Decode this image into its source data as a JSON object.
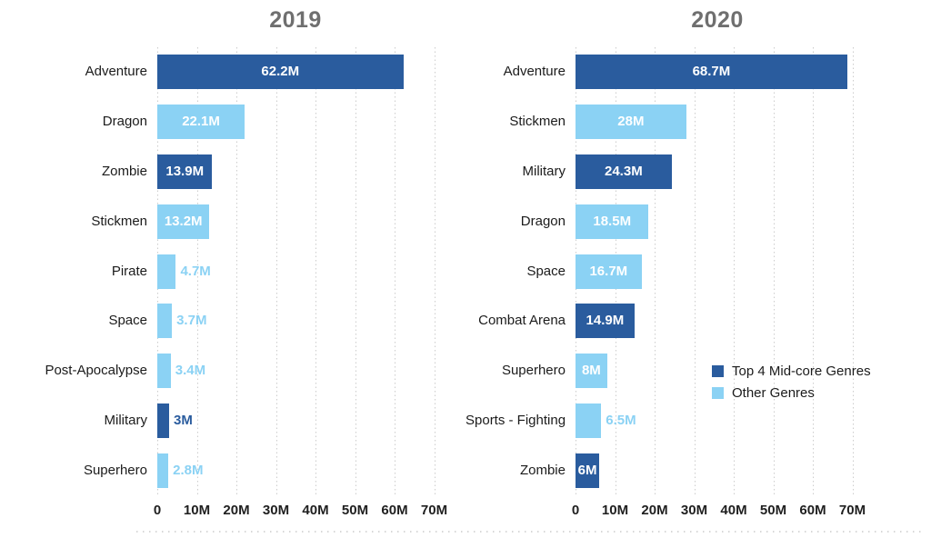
{
  "colors": {
    "top4": "#2a5c9e",
    "other": "#8bd2f4",
    "title": "#6f6f6f",
    "category_text": "#1b1b1b",
    "tick_text": "#1f1f1f",
    "grid": "#cccccc",
    "value_text_inside": "#ffffff"
  },
  "legend": {
    "items": [
      {
        "label": "Top 4 Mid-core Genres",
        "group": "top4"
      },
      {
        "label": "Other Genres",
        "group": "other"
      }
    ]
  },
  "chart_data": [
    {
      "type": "bar",
      "orientation": "horizontal",
      "title": "2019",
      "unit": "M",
      "xlim": [
        0,
        70
      ],
      "x_ticks": [
        "0",
        "10M",
        "20M",
        "30M",
        "40M",
        "50M",
        "60M",
        "70M"
      ],
      "grid": "dotted-vertical",
      "legend_visible": false,
      "categories": [
        "Adventure",
        "Dragon",
        "Zombie",
        "Stickmen",
        "Pirate",
        "Space",
        "Post-Apocalypse",
        "Military",
        "Superhero"
      ],
      "values": [
        62.2,
        22.1,
        13.9,
        13.2,
        4.7,
        3.7,
        3.4,
        3,
        2.8
      ],
      "value_labels": [
        "62.2M",
        "22.1M",
        "13.9M",
        "13.2M",
        "4.7M",
        "3.7M",
        "3.4M",
        "3M",
        "2.8M"
      ],
      "groups": [
        "top4",
        "other",
        "top4",
        "other",
        "other",
        "other",
        "other",
        "top4",
        "other"
      ],
      "label_inside": [
        true,
        true,
        true,
        true,
        false,
        false,
        false,
        false,
        false
      ]
    },
    {
      "type": "bar",
      "orientation": "horizontal",
      "title": "2020",
      "unit": "M",
      "xlim": [
        0,
        70
      ],
      "x_ticks": [
        "0",
        "10M",
        "20M",
        "30M",
        "40M",
        "50M",
        "60M",
        "70M"
      ],
      "grid": "dotted-vertical",
      "legend_visible": true,
      "categories": [
        "Adventure",
        "Stickmen",
        "Military",
        "Dragon",
        "Space",
        "Combat Arena",
        "Superhero",
        "Sports - Fighting",
        "Zombie"
      ],
      "values": [
        68.7,
        28,
        24.3,
        18.5,
        16.7,
        14.9,
        8,
        6.5,
        6
      ],
      "value_labels": [
        "68.7M",
        "28M",
        "24.3M",
        "18.5M",
        "16.7M",
        "14.9M",
        "8M",
        "6.5M",
        "6M"
      ],
      "groups": [
        "top4",
        "other",
        "top4",
        "other",
        "other",
        "top4",
        "other",
        "other",
        "top4"
      ],
      "label_inside": [
        true,
        true,
        true,
        true,
        true,
        true,
        true,
        false,
        true
      ]
    }
  ]
}
